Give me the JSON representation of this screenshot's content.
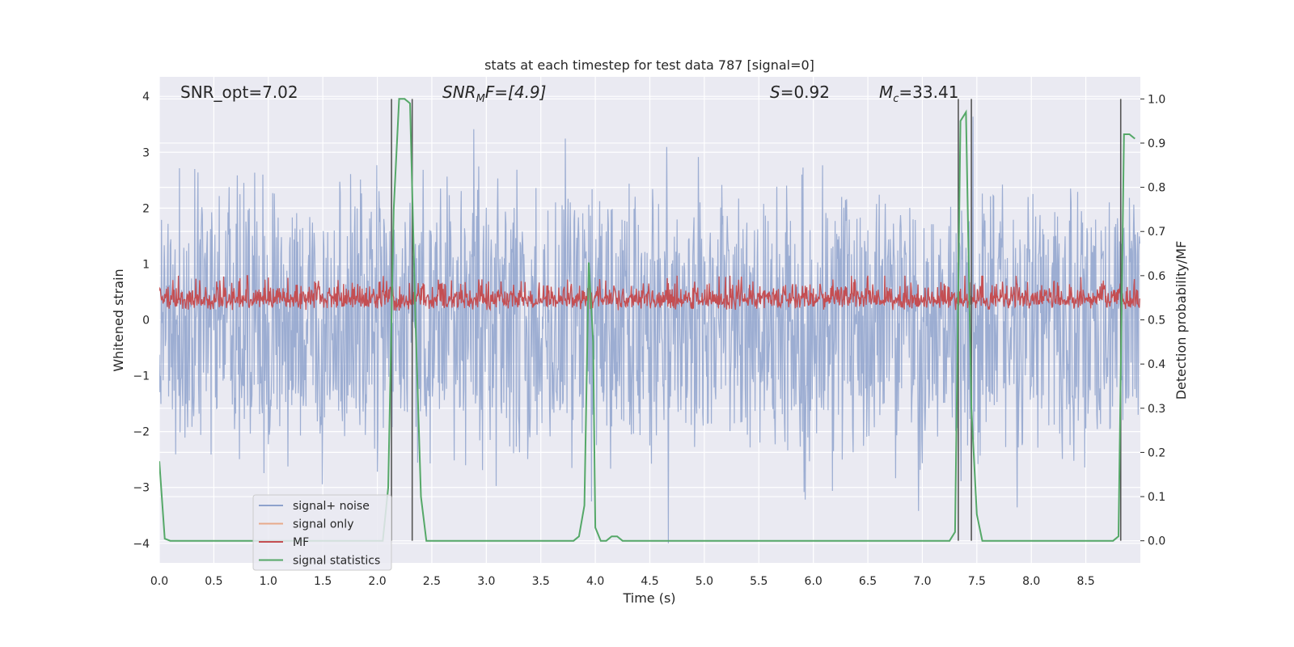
{
  "chart_data": {
    "type": "line",
    "title": "stats at each timestep for test data 787 [signal=0]",
    "xlabel": "Time (s)",
    "ylabel_left": "Whitened strain",
    "ylabel_right": "Detection probability/MF",
    "xlim": [
      0.0,
      9.0
    ],
    "ylim_left": [
      -4.35,
      4.35
    ],
    "ylim_right": [
      -0.05,
      1.05
    ],
    "x_ticks": [
      0.0,
      0.5,
      1.0,
      1.5,
      2.0,
      2.5,
      3.0,
      3.5,
      4.0,
      4.5,
      5.0,
      5.5,
      6.0,
      6.5,
      7.0,
      7.5,
      8.0,
      8.5
    ],
    "x_tick_labels": [
      "0.0",
      "0.5",
      "1.0",
      "1.5",
      "2.0",
      "2.5",
      "3.0",
      "3.5",
      "4.0",
      "4.5",
      "5.0",
      "5.5",
      "6.0",
      "6.5",
      "7.0",
      "7.5",
      "8.0",
      "8.5"
    ],
    "y_ticks_left": [
      4,
      3,
      2,
      1,
      0,
      -1,
      -2,
      -3,
      -4
    ],
    "y_tick_labels_left": [
      "4",
      "3",
      "2",
      "1",
      "0",
      "−1",
      "−2",
      "−3",
      "−4"
    ],
    "y_ticks_right": [
      1.0,
      0.9,
      0.8,
      0.7,
      0.6,
      0.5,
      0.4,
      0.3,
      0.2,
      0.1,
      0.0
    ],
    "y_tick_labels_right": [
      "1.0",
      "0.9",
      "0.8",
      "0.7",
      "0.6",
      "0.5",
      "0.4",
      "0.3",
      "0.2",
      "0.1",
      "0.0"
    ],
    "annotations": {
      "snr_opt": "SNR_opt=7.02",
      "snr_mf_base": "SNR",
      "snr_mf_sub": "M",
      "snr_mf_rest": "F=[4.9]",
      "s_sym": "S",
      "s_rest": "=0.92",
      "mc_base": "M",
      "mc_sub": "c",
      "mc_rest": "=33.41"
    },
    "legend": {
      "location": "lower-left",
      "entries": [
        {
          "label": "signal+ noise",
          "color": "#8ea2cc"
        },
        {
          "label": "signal only",
          "color": "#e8a98b"
        },
        {
          "label": "MF",
          "color": "#c44e52"
        },
        {
          "label": "signal statistics",
          "color": "#55a868"
        }
      ]
    },
    "colors": {
      "plot_bg": "#eaeaf2",
      "grid": "#ffffff",
      "noise": "#8ea2cc",
      "mf": "#c44e52",
      "stats": "#55a868",
      "vline": "#555555"
    },
    "vlines_x": [
      2.13,
      2.32,
      7.33,
      7.45,
      8.82
    ],
    "signal_statistics": {
      "x": [
        0.0,
        0.05,
        0.1,
        0.5,
        1.0,
        1.5,
        1.9,
        2.05,
        2.1,
        2.15,
        2.2,
        2.25,
        2.3,
        2.35,
        2.4,
        2.45,
        2.8,
        3.2,
        3.5,
        3.8,
        3.85,
        3.9,
        3.94,
        3.98,
        4.0,
        4.05,
        4.1,
        4.15,
        4.2,
        4.25,
        4.3,
        4.5,
        5.0,
        5.5,
        6.0,
        6.5,
        7.0,
        7.25,
        7.3,
        7.35,
        7.4,
        7.45,
        7.5,
        7.55,
        7.6,
        8.0,
        8.5,
        8.75,
        8.8,
        8.85,
        8.9,
        8.95
      ],
      "y": [
        0.18,
        0.005,
        0.0,
        0.0,
        0.0,
        0.0,
        0.0,
        0.0,
        0.12,
        0.75,
        1.0,
        1.0,
        0.99,
        0.5,
        0.1,
        0.0,
        0.0,
        0.0,
        0.0,
        0.0,
        0.01,
        0.08,
        0.63,
        0.45,
        0.03,
        0.0,
        0.0,
        0.01,
        0.01,
        0.0,
        0.0,
        0.0,
        0.0,
        0.0,
        0.0,
        0.0,
        0.0,
        0.0,
        0.02,
        0.95,
        0.97,
        0.3,
        0.06,
        0.0,
        0.0,
        0.0,
        0.0,
        0.0,
        0.01,
        0.92,
        0.92,
        0.91
      ]
    },
    "signal_plus_noise": {
      "description_of_series": "dense whitened strain time series",
      "dt": 0.005,
      "envelope_typical": [
        -1.6,
        1.6
      ],
      "peak_max": 4.0,
      "peak_min": -4.0
    },
    "mf": {
      "dt": 0.005,
      "range_typical": [
        0.0,
        0.8
      ]
    }
  }
}
